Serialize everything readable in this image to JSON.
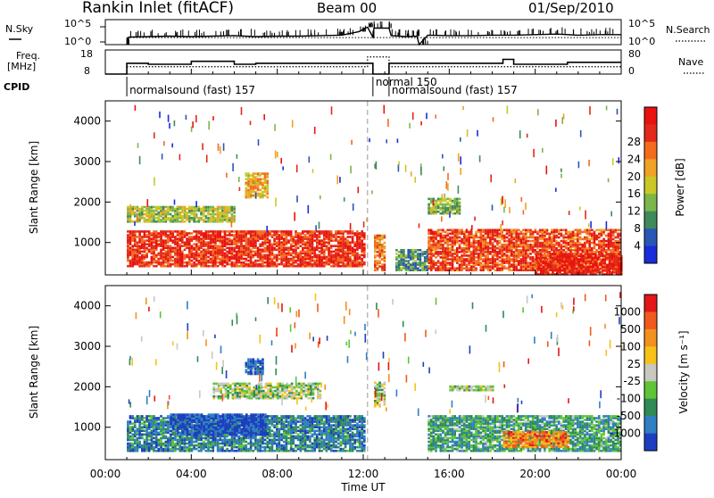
{
  "header": {
    "station": "Rankin Inlet (fitACF)",
    "beam": "Beam 00",
    "date": "01/Sep/2010"
  },
  "left_labels": {
    "nsky": "N.Sky",
    "freq_line1": "Freq.",
    "freq_line2": "[MHz]",
    "cpid": "CPID"
  },
  "right_labels": {
    "nsearch": "N.Search",
    "nave": "Nave"
  },
  "cpid_segments": [
    {
      "label": "normalsound (fast) 157",
      "start_h": 1.0,
      "end_h": 12.45
    },
    {
      "label": "normal 150",
      "start_h": 12.45,
      "end_h": 13.2
    },
    {
      "label": "normalsound (fast) 157",
      "start_h": 13.2,
      "end_h": 24.0
    }
  ],
  "chart_data": [
    {
      "type": "line",
      "name": "noise",
      "ylabel": "N.Sky",
      "y2label": "N.Search",
      "ytick_labels": [
        "10^5",
        "10^0"
      ],
      "y2tick_labels": [
        "10^5",
        "10^0"
      ],
      "x_hours": [
        1.0,
        1.1,
        2.0,
        3.0,
        4.0,
        5.0,
        6.0,
        7.0,
        8.0,
        9.0,
        10.0,
        11.0,
        11.8,
        12.2,
        12.45,
        12.5,
        13.2,
        13.3,
        14.0,
        14.5,
        14.6,
        15.0,
        16.0,
        17.0,
        18.0,
        19.0,
        20.0,
        21.0,
        22.0,
        23.0,
        24.0
      ],
      "log_values": [
        0.0,
        1.5,
        1.6,
        1.7,
        1.6,
        1.7,
        1.8,
        1.6,
        1.7,
        1.7,
        1.8,
        1.9,
        2.6,
        3.5,
        1.5,
        3.3,
        3.3,
        1.8,
        1.6,
        1.7,
        0.0,
        1.9,
        1.8,
        1.8,
        1.9,
        1.9,
        2.0,
        2.1,
        1.9,
        2.0,
        2.0
      ]
    },
    {
      "type": "line",
      "name": "frequency",
      "ylabel": "Freq. [MHz]",
      "y2label": "Nave",
      "ytick_labels": [
        "18",
        "8"
      ],
      "y2tick_labels": [
        "80",
        "0"
      ],
      "ylim": [
        8,
        18
      ],
      "y2lim": [
        0,
        80
      ],
      "freq_steps": [
        {
          "start_h": 0.0,
          "end_h": 1.0,
          "mhz": 8.0
        },
        {
          "start_h": 1.0,
          "end_h": 2.0,
          "mhz": 13.5
        },
        {
          "start_h": 2.0,
          "end_h": 4.0,
          "mhz": 13.0
        },
        {
          "start_h": 4.0,
          "end_h": 6.0,
          "mhz": 14.5
        },
        {
          "start_h": 6.0,
          "end_h": 7.0,
          "mhz": 13.0
        },
        {
          "start_h": 7.0,
          "end_h": 12.45,
          "mhz": 13.5
        },
        {
          "start_h": 12.45,
          "end_h": 13.2,
          "mhz": 8.0
        },
        {
          "start_h": 13.2,
          "end_h": 18.5,
          "mhz": 13.5
        },
        {
          "start_h": 18.5,
          "end_h": 19.0,
          "mhz": 15.5
        },
        {
          "start_h": 19.0,
          "end_h": 21.5,
          "mhz": 13.0
        },
        {
          "start_h": 21.5,
          "end_h": 24.0,
          "mhz": 14.0
        }
      ],
      "nave_steps": [
        {
          "start_h": 1.0,
          "end_h": 12.2,
          "nave": 30
        },
        {
          "start_h": 12.2,
          "end_h": 13.2,
          "nave": 70
        },
        {
          "start_h": 13.2,
          "end_h": 24.0,
          "nave": 30
        }
      ]
    },
    {
      "type": "heatmap",
      "name": "power",
      "ylabel": "Slant Range [km]",
      "yticks": [
        1000,
        2000,
        3000,
        4000
      ],
      "ylim": [
        200,
        4500
      ],
      "colorbar": {
        "label": "Power [dB]",
        "ticks": [
          "4",
          "8",
          "12",
          "16",
          "20",
          "24",
          "28"
        ],
        "colors": [
          "#1a2bd9",
          "#2a56b5",
          "#3f8a5a",
          "#7bb64a",
          "#c9c826",
          "#f0a225",
          "#f36c1e",
          "#e32a1a",
          "#e8130f"
        ]
      },
      "echo_blocks": [
        {
          "h0": 1.0,
          "h1": 12.0,
          "r0": 400,
          "r1": 1300,
          "level": 0.85
        },
        {
          "h0": 1.0,
          "h1": 6.0,
          "r0": 1500,
          "r1": 1900,
          "level": 0.45
        },
        {
          "h0": 6.5,
          "h1": 7.5,
          "r0": 2100,
          "r1": 2700,
          "level": 0.6
        },
        {
          "h0": 12.5,
          "h1": 13.0,
          "r0": 300,
          "r1": 1200,
          "level": 0.7
        },
        {
          "h0": 13.5,
          "h1": 15.0,
          "r0": 300,
          "r1": 800,
          "level": 0.3
        },
        {
          "h0": 15.0,
          "h1": 16.5,
          "r0": 1700,
          "r1": 2100,
          "level": 0.4
        },
        {
          "h0": 15.0,
          "h1": 24.0,
          "r0": 300,
          "r1": 1300,
          "level": 0.8
        },
        {
          "h0": 20.0,
          "h1": 24.0,
          "r0": 200,
          "r1": 700,
          "level": 0.9
        }
      ]
    },
    {
      "type": "heatmap",
      "name": "velocity",
      "xlabel": "Time UT",
      "ylabel": "Slant Range [km]",
      "xtick_labels": [
        "00:00",
        "04:00",
        "08:00",
        "12:00",
        "16:00",
        "20:00",
        "00:00"
      ],
      "yticks": [
        1000,
        2000,
        3000,
        4000
      ],
      "ylim": [
        200,
        4500
      ],
      "colorbar": {
        "label": "Velocity [m s⁻¹]",
        "ticks": [
          "1000",
          "500",
          "100",
          "25",
          "-25",
          "-100",
          "-500",
          "-1000"
        ],
        "colors": [
          "#1d3fbf",
          "#2e7fc4",
          "#2f8a55",
          "#5fc437",
          "#c8c8c0",
          "#f6c21a",
          "#f39120",
          "#f05a1c",
          "#e3161a"
        ]
      },
      "echo_blocks": [
        {
          "h0": 1.0,
          "h1": 12.0,
          "r0": 400,
          "r1": 1300,
          "level": 0.2
        },
        {
          "h0": 3.0,
          "h1": 7.5,
          "r0": 800,
          "r1": 1300,
          "level": 0.05
        },
        {
          "h0": 6.5,
          "h1": 7.3,
          "r0": 2300,
          "r1": 2700,
          "level": 0.1
        },
        {
          "h0": 5.0,
          "h1": 10.0,
          "r0": 1700,
          "r1": 2100,
          "level": 0.45
        },
        {
          "h0": 12.5,
          "h1": 13.0,
          "r0": 1500,
          "r1": 2100,
          "level": 0.45
        },
        {
          "h0": 15.0,
          "h1": 24.0,
          "r0": 400,
          "r1": 1300,
          "level": 0.3
        },
        {
          "h0": 18.5,
          "h1": 21.5,
          "r0": 500,
          "r1": 900,
          "level": 0.75
        },
        {
          "h0": 16.0,
          "h1": 18.0,
          "r0": 1900,
          "r1": 2000,
          "level": 0.45
        }
      ]
    }
  ]
}
